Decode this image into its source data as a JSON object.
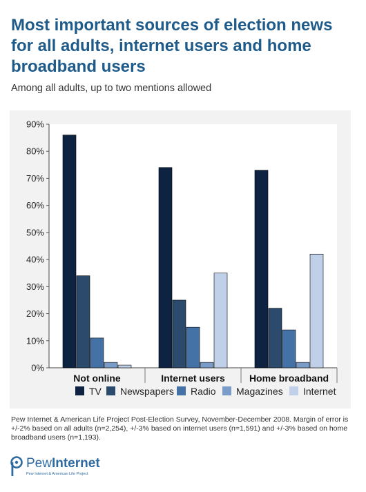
{
  "header": {
    "title": "Most important sources of election news for all adults, internet users and home broadband users",
    "subtitle": "Among all adults, up to two mentions allowed"
  },
  "footnote": "Pew Internet & American Life Project Post-Election Survey, November-December 2008. Margin of error is +/-2% based on all adults (n=2,254), +/-3% based on internet users (n=1,591) and +/-3% based on home broadband users (n=1,193).",
  "logo": {
    "word_light": "Pew",
    "word_bold": "Internet",
    "tagline": "Pew Internet & American Life Project",
    "color": "#2d6aa0"
  },
  "chart_data": {
    "type": "bar",
    "title": "Most important sources of election news for all adults, internet users and home broadband users",
    "subtitle": "Among all adults, up to two mentions allowed",
    "xlabel": "",
    "ylabel": "",
    "categories": [
      "Not online",
      "Internet users",
      "Home broadband"
    ],
    "series": [
      {
        "name": "TV",
        "color": "#0d2341",
        "values": [
          86,
          74,
          73
        ]
      },
      {
        "name": "Newspapers",
        "color": "#2b4a6c",
        "values": [
          34,
          25,
          22
        ]
      },
      {
        "name": "Radio",
        "color": "#4472a7",
        "values": [
          11,
          15,
          14
        ]
      },
      {
        "name": "Magazines",
        "color": "#7a9cc8",
        "values": [
          2,
          2,
          2
        ]
      },
      {
        "name": "Internet",
        "color": "#bfd0e8",
        "values": [
          1,
          35,
          42
        ]
      }
    ],
    "ylim": [
      0,
      90
    ],
    "yticks": [
      0,
      10,
      20,
      30,
      40,
      50,
      60,
      70,
      80,
      90
    ],
    "ytick_labels": [
      "0%",
      "10%",
      "20%",
      "30%",
      "40%",
      "50%",
      "60%",
      "70%",
      "80%",
      "90%"
    ],
    "grid": false,
    "legend_position": "bottom"
  }
}
